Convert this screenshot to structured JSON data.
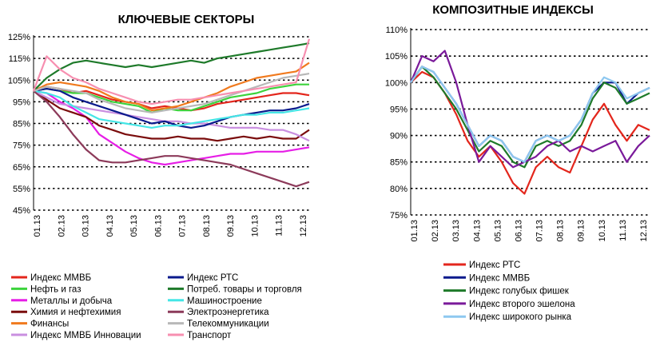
{
  "chart_data": [
    {
      "type": "line",
      "title": "КЛЮЧЕВЫЕ СЕКТОРЫ",
      "x_ticks": [
        "01.13",
        "02.13",
        "03.13",
        "04.13",
        "05.13",
        "06.13",
        "07.13",
        "08.13",
        "09.13",
        "10.13",
        "11.13",
        "12.13"
      ],
      "y_ticks": [
        "125%",
        "115%",
        "105%",
        "95%",
        "85%",
        "75%",
        "65%",
        "55%",
        "45%"
      ],
      "ylim": [
        45,
        125
      ],
      "grid": "horizontal dotted",
      "legend_position": "bottom",
      "series": [
        {
          "name": "Индекс ММВБ",
          "color": "#e3261c",
          "values": [
            100,
            102,
            101,
            99,
            100,
            98,
            96,
            95,
            94,
            92,
            93,
            92,
            91,
            92,
            94,
            95,
            96,
            97,
            98,
            99,
            99,
            98
          ]
        },
        {
          "name": "Нефть и газ",
          "color": "#3cd33c",
          "values": [
            100,
            101,
            100,
            99,
            99,
            97,
            95,
            94,
            93,
            90,
            92,
            91,
            91,
            93,
            95,
            97,
            98,
            99,
            101,
            102,
            103,
            103
          ]
        },
        {
          "name": "Металлы и добыча",
          "color": "#e61ee6",
          "values": [
            100,
            99,
            95,
            92,
            88,
            80,
            76,
            72,
            69,
            67,
            66,
            67,
            68,
            69,
            70,
            71,
            71,
            72,
            72,
            72,
            73,
            74
          ]
        },
        {
          "name": "Химия и нефтехимия",
          "color": "#7a0c0c",
          "values": [
            100,
            96,
            92,
            90,
            88,
            84,
            82,
            80,
            79,
            78,
            78,
            79,
            78,
            78,
            77,
            78,
            79,
            78,
            79,
            78,
            78,
            82
          ]
        },
        {
          "name": "Финансы",
          "color": "#f07a1e",
          "values": [
            100,
            103,
            104,
            103,
            102,
            100,
            97,
            95,
            94,
            91,
            92,
            93,
            95,
            97,
            99,
            102,
            104,
            106,
            107,
            108,
            109,
            113
          ]
        },
        {
          "name": "Индекс ММВБ Инновации",
          "color": "#c98fe0",
          "values": [
            100,
            97,
            94,
            93,
            92,
            91,
            90,
            89,
            88,
            87,
            86,
            86,
            85,
            85,
            84,
            83,
            83,
            83,
            82,
            82,
            80,
            77
          ]
        },
        {
          "name": "Индекс РТС",
          "color": "#0a1a8c",
          "values": [
            100,
            101,
            100,
            97,
            95,
            93,
            91,
            89,
            87,
            85,
            86,
            84,
            83,
            84,
            86,
            88,
            89,
            90,
            91,
            91,
            92,
            94
          ]
        },
        {
          "name": "Потреб. товары и торговля",
          "color": "#1e7a2a",
          "values": [
            100,
            106,
            110,
            113,
            114,
            113,
            112,
            111,
            112,
            111,
            112,
            113,
            114,
            113,
            115,
            116,
            117,
            118,
            119,
            120,
            121,
            122
          ]
        },
        {
          "name": "Машиностроение",
          "color": "#45e6e6",
          "values": [
            100,
            99,
            97,
            93,
            90,
            87,
            86,
            85,
            84,
            83,
            84,
            84,
            85,
            86,
            87,
            88,
            89,
            89,
            90,
            90,
            91,
            92
          ]
        },
        {
          "name": "Электроэнергетика",
          "color": "#8c3a5a",
          "values": [
            100,
            95,
            88,
            80,
            73,
            68,
            67,
            67,
            68,
            69,
            70,
            70,
            69,
            68,
            67,
            66,
            64,
            62,
            60,
            58,
            56,
            58
          ]
        },
        {
          "name": "Телекоммуникации",
          "color": "#b8b8b8",
          "values": [
            100,
            102,
            101,
            100,
            99,
            96,
            94,
            92,
            91,
            90,
            91,
            92,
            93,
            94,
            96,
            98,
            100,
            102,
            104,
            106,
            107,
            108
          ]
        },
        {
          "name": "Транспорт",
          "color": "#f78fb0",
          "values": [
            100,
            116,
            110,
            106,
            104,
            101,
            99,
            97,
            95,
            94,
            95,
            96,
            96,
            97,
            98,
            99,
            100,
            101,
            102,
            103,
            104,
            124
          ]
        }
      ]
    },
    {
      "type": "line",
      "title": "КОМПОЗИТНЫЕ ИНДЕКСЫ",
      "x_ticks": [
        "01.13",
        "02.13",
        "03.13",
        "04.13",
        "05.13",
        "06.13",
        "07.13",
        "08.13",
        "09.13",
        "10.13",
        "11.13",
        "12.13"
      ],
      "y_ticks": [
        "110%",
        "105%",
        "100%",
        "95%",
        "90%",
        "85%",
        "80%",
        "75%"
      ],
      "ylim": [
        75,
        110
      ],
      "grid": "horizontal dotted",
      "legend_position": "bottom",
      "series": [
        {
          "name": "Индекс РТС",
          "color": "#e3261c",
          "values": [
            100,
            102,
            101,
            98,
            94,
            89,
            86,
            88,
            85,
            81,
            79,
            84,
            86,
            84,
            83,
            88,
            93,
            96,
            92,
            89,
            92,
            91
          ]
        },
        {
          "name": "Индекс ММВБ",
          "color": "#0a1a8c",
          "values": [
            100,
            103,
            102,
            99,
            96,
            92,
            88,
            90,
            89,
            86,
            85,
            89,
            90,
            89,
            90,
            93,
            98,
            100,
            100,
            96,
            98,
            99
          ]
        },
        {
          "name": "Индекс голубых фишек",
          "color": "#1e7a2a",
          "values": [
            100,
            103,
            101,
            98,
            95,
            91,
            87,
            89,
            88,
            85,
            84,
            88,
            89,
            88,
            89,
            92,
            97,
            100,
            99,
            96,
            97,
            98
          ]
        },
        {
          "name": "Индекс второго эшелона",
          "color": "#7a1a9a",
          "values": [
            100,
            105,
            104,
            106,
            100,
            92,
            85,
            88,
            86,
            84,
            85,
            86,
            88,
            89,
            87,
            88,
            87,
            88,
            89,
            85,
            88,
            90
          ]
        },
        {
          "name": "Индекс широкого рынка",
          "color": "#8ec8f0",
          "values": [
            100,
            103,
            102,
            99,
            96,
            92,
            88,
            90,
            89,
            86,
            85,
            89,
            90,
            89,
            90,
            93,
            98,
            101,
            100,
            97,
            98,
            99
          ]
        }
      ]
    }
  ]
}
